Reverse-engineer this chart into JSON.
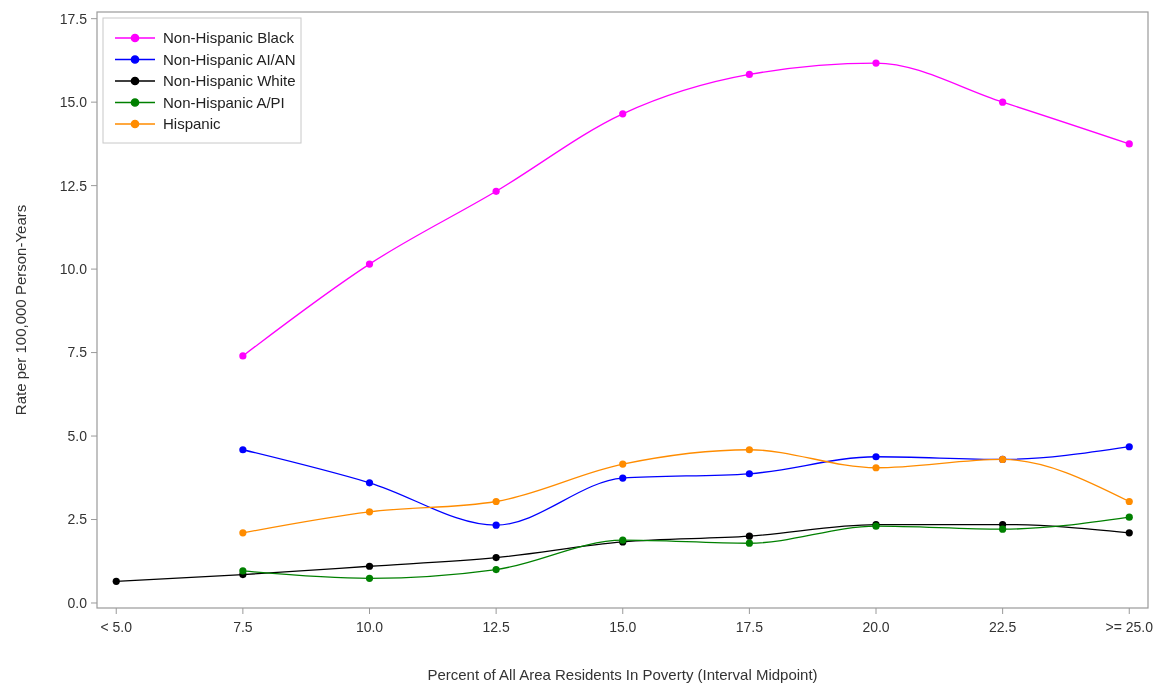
{
  "chart_data": {
    "type": "line",
    "xlabel": "Percent of All Area Residents In Poverty (Interval Midpoint)",
    "ylabel": "Rate per 100,000 Person-Years",
    "xlim": [
      4.62,
      25.37
    ],
    "ylim": [
      -0.15,
      17.7
    ],
    "xticks": [
      {
        "value": 5,
        "label": "< 5.0"
      },
      {
        "value": 7.5,
        "label": "7.5"
      },
      {
        "value": 10,
        "label": "10.0"
      },
      {
        "value": 12.5,
        "label": "12.5"
      },
      {
        "value": 15,
        "label": "15.0"
      },
      {
        "value": 17.5,
        "label": "17.5"
      },
      {
        "value": 20,
        "label": "20.0"
      },
      {
        "value": 22.5,
        "label": "22.5"
      },
      {
        "value": 25,
        "label": ">= 25.0"
      }
    ],
    "yticks": [
      {
        "value": 0,
        "label": "0.0"
      },
      {
        "value": 2.5,
        "label": "2.5"
      },
      {
        "value": 5,
        "label": "5.0"
      },
      {
        "value": 7.5,
        "label": "7.5"
      },
      {
        "value": 10,
        "label": "10.0"
      },
      {
        "value": 12.5,
        "label": "12.5"
      },
      {
        "value": 15,
        "label": "15.0"
      },
      {
        "value": 17.5,
        "label": "17.5"
      }
    ],
    "grid": false,
    "legend": "top left",
    "marker": "circle",
    "line_style": "solid",
    "series": [
      {
        "name": "Non-Hispanic Black",
        "color": "#ff00ff",
        "x": [
          7.5,
          10,
          12.5,
          15,
          17.5,
          20,
          22.5,
          25
        ],
        "values": [
          7.4,
          10.15,
          12.33,
          14.65,
          15.83,
          16.17,
          15.0,
          13.75
        ]
      },
      {
        "name": "Non-Hispanic AI/AN",
        "color": "#0000ff",
        "x": [
          7.5,
          10,
          12.5,
          15,
          17.5,
          20,
          22.5,
          25
        ],
        "values": [
          4.59,
          3.6,
          2.33,
          3.74,
          3.87,
          4.38,
          4.3,
          4.68
        ]
      },
      {
        "name": "Non-Hispanic White",
        "color": "#000000",
        "x": [
          5,
          7.5,
          10,
          12.5,
          15,
          17.5,
          20,
          22.5,
          25
        ],
        "values": [
          0.65,
          0.85,
          1.1,
          1.36,
          1.83,
          2.0,
          2.35,
          2.35,
          2.1
        ]
      },
      {
        "name": "Non-Hispanic A/PI",
        "color": "#008000",
        "x": [
          7.5,
          10,
          12.5,
          15,
          17.5,
          20,
          22.5,
          25
        ],
        "values": [
          0.96,
          0.74,
          1.0,
          1.88,
          1.79,
          2.3,
          2.21,
          2.57
        ]
      },
      {
        "name": "Hispanic",
        "color": "#ff8c00",
        "x": [
          7.5,
          10,
          12.5,
          15,
          17.5,
          20,
          22.5,
          25
        ],
        "values": [
          2.1,
          2.73,
          3.04,
          4.16,
          4.59,
          4.05,
          4.3,
          3.04
        ]
      }
    ]
  }
}
